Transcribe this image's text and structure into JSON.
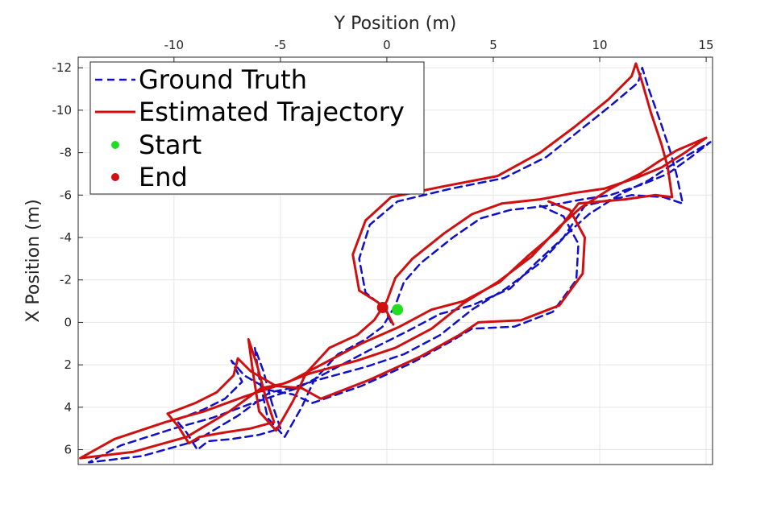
{
  "chart_data": {
    "type": "line",
    "xlabel": "Y Position (m)",
    "ylabel": "X Position (m)",
    "xlim": [
      -14.5,
      15.3
    ],
    "ylim": [
      -12.5,
      6.7
    ],
    "y_reversed": true,
    "x_axis_location": "top",
    "grid": true,
    "legend_placement": "top-left",
    "xticks": [
      -10,
      -5,
      0,
      5,
      10,
      15
    ],
    "yticks": [
      -12,
      -10,
      -8,
      -6,
      -4,
      -2,
      0,
      2,
      4,
      6
    ],
    "series": [
      {
        "name": "Ground Truth",
        "style": "dashed",
        "color": "#1010c8",
        "points": [
          [
            0.2,
            0.0
          ],
          [
            -0.2,
            -0.8
          ],
          [
            -0.5,
            -1.0
          ],
          [
            -1.0,
            -1.4
          ],
          [
            -1.3,
            -3.0
          ],
          [
            -0.8,
            -4.6
          ],
          [
            0.5,
            -5.7
          ],
          [
            3.0,
            -6.3
          ],
          [
            5.5,
            -6.8
          ],
          [
            7.5,
            -7.8
          ],
          [
            9.0,
            -9.0
          ],
          [
            10.5,
            -10.2
          ],
          [
            11.8,
            -11.3
          ],
          [
            12.0,
            -12.0
          ],
          [
            12.3,
            -11.0
          ],
          [
            12.8,
            -9.6
          ],
          [
            13.3,
            -8.1
          ],
          [
            13.6,
            -7.0
          ],
          [
            13.9,
            -5.6
          ],
          [
            13.0,
            -5.9
          ],
          [
            11.5,
            -6.0
          ],
          [
            9.3,
            -5.5
          ],
          [
            8.3,
            -4.0
          ],
          [
            7.0,
            -2.8
          ],
          [
            5.8,
            -1.6
          ],
          [
            4.0,
            -0.8
          ],
          [
            2.5,
            -0.4
          ],
          [
            1.0,
            0.4
          ],
          [
            -0.8,
            1.3
          ],
          [
            -2.5,
            2.2
          ],
          [
            -4.2,
            3.1
          ],
          [
            -6.3,
            3.8
          ],
          [
            -8.2,
            4.5
          ],
          [
            -10.0,
            5.0
          ],
          [
            -12.5,
            5.8
          ],
          [
            -14.0,
            6.6
          ],
          [
            -11.5,
            6.3
          ],
          [
            -9.0,
            5.6
          ],
          [
            -7.0,
            4.4
          ],
          [
            -5.5,
            3.3
          ],
          [
            -4.5,
            3.1
          ],
          [
            -3.2,
            2.7
          ],
          [
            -1.0,
            2.1
          ],
          [
            0.8,
            1.5
          ],
          [
            2.5,
            0.6
          ],
          [
            4.0,
            -0.6
          ],
          [
            5.6,
            -1.6
          ],
          [
            7.2,
            -2.8
          ],
          [
            8.5,
            -4.2
          ],
          [
            9.5,
            -5.1
          ],
          [
            10.9,
            -6.0
          ],
          [
            12.3,
            -6.7
          ],
          [
            13.2,
            -7.3
          ],
          [
            14.0,
            -7.8
          ],
          [
            15.2,
            -8.5
          ],
          [
            14.3,
            -7.8
          ],
          [
            13.2,
            -7.0
          ],
          [
            12.0,
            -6.5
          ],
          [
            10.5,
            -6.0
          ],
          [
            9.2,
            -5.8
          ],
          [
            7.6,
            -5.5
          ],
          [
            5.8,
            -5.3
          ],
          [
            4.4,
            -4.9
          ],
          [
            3.1,
            -4.0
          ],
          [
            1.6,
            -2.8
          ],
          [
            0.8,
            -1.9
          ],
          [
            0.4,
            -0.8
          ],
          [
            -0.2,
            0.2
          ],
          [
            -1.0,
            0.8
          ],
          [
            -2.3,
            1.5
          ],
          [
            -3.4,
            2.7
          ],
          [
            -4.0,
            4.0
          ],
          [
            -4.8,
            5.4
          ],
          [
            -5.6,
            4.5
          ],
          [
            -6.0,
            2.6
          ],
          [
            -6.2,
            1.2
          ],
          [
            -5.8,
            2.3
          ],
          [
            -5.4,
            3.8
          ],
          [
            -5.0,
            5.0
          ],
          [
            -6.0,
            5.3
          ],
          [
            -7.3,
            5.5
          ],
          [
            -8.4,
            5.6
          ],
          [
            -8.9,
            6.0
          ],
          [
            -9.4,
            5.2
          ],
          [
            -9.9,
            4.6
          ],
          [
            -8.6,
            4.1
          ],
          [
            -7.6,
            3.6
          ],
          [
            -6.8,
            2.8
          ],
          [
            -7.3,
            1.8
          ],
          [
            -6.7,
            2.5
          ],
          [
            -5.5,
            3.2
          ],
          [
            -4.4,
            3.4
          ],
          [
            -3.5,
            3.8
          ],
          [
            -1.2,
            3.0
          ],
          [
            1.2,
            1.9
          ],
          [
            3.0,
            0.9
          ],
          [
            4.0,
            0.3
          ],
          [
            6.0,
            0.2
          ],
          [
            7.8,
            -0.5
          ],
          [
            8.9,
            -2.0
          ],
          [
            9.0,
            -3.7
          ],
          [
            8.3,
            -5.0
          ],
          [
            7.2,
            -5.5
          ]
        ]
      },
      {
        "name": "Estimated Trajectory",
        "style": "solid",
        "color": "#d01010",
        "points": [
          [
            0.3,
            0.1
          ],
          [
            -0.1,
            -0.7
          ],
          [
            -0.5,
            -1.0
          ],
          [
            -1.3,
            -1.5
          ],
          [
            -1.6,
            -3.2
          ],
          [
            -1.0,
            -4.8
          ],
          [
            0.2,
            -5.9
          ],
          [
            2.6,
            -6.4
          ],
          [
            5.2,
            -6.9
          ],
          [
            7.2,
            -8.0
          ],
          [
            8.8,
            -9.2
          ],
          [
            10.4,
            -10.5
          ],
          [
            11.5,
            -11.6
          ],
          [
            11.7,
            -12.2
          ],
          [
            12.0,
            -11.3
          ],
          [
            12.4,
            -9.9
          ],
          [
            12.9,
            -8.4
          ],
          [
            13.2,
            -7.3
          ],
          [
            13.4,
            -5.9
          ],
          [
            12.6,
            -6.0
          ],
          [
            11.2,
            -5.8
          ],
          [
            9.0,
            -5.6
          ],
          [
            8.0,
            -4.3
          ],
          [
            6.6,
            -3.1
          ],
          [
            5.3,
            -1.9
          ],
          [
            3.6,
            -1.0
          ],
          [
            2.1,
            -0.6
          ],
          [
            0.6,
            0.2
          ],
          [
            -1.2,
            1.0
          ],
          [
            -2.9,
            1.9
          ],
          [
            -4.6,
            2.8
          ],
          [
            -6.7,
            3.5
          ],
          [
            -8.6,
            4.2
          ],
          [
            -10.4,
            4.7
          ],
          [
            -12.8,
            5.5
          ],
          [
            -14.4,
            6.4
          ],
          [
            -11.9,
            6.1
          ],
          [
            -9.4,
            5.4
          ],
          [
            -7.4,
            4.2
          ],
          [
            -5.9,
            3.1
          ],
          [
            -4.9,
            2.9
          ],
          [
            -3.6,
            2.4
          ],
          [
            -1.4,
            1.8
          ],
          [
            0.4,
            1.2
          ],
          [
            2.1,
            0.3
          ],
          [
            3.6,
            -0.9
          ],
          [
            5.2,
            -1.9
          ],
          [
            6.8,
            -3.1
          ],
          [
            8.1,
            -4.5
          ],
          [
            9.1,
            -5.4
          ],
          [
            10.5,
            -6.3
          ],
          [
            11.9,
            -7.0
          ],
          [
            12.8,
            -7.6
          ],
          [
            13.6,
            -8.1
          ],
          [
            15.0,
            -8.7
          ],
          [
            14.0,
            -8.0
          ],
          [
            12.9,
            -7.3
          ],
          [
            11.7,
            -6.8
          ],
          [
            10.2,
            -6.3
          ],
          [
            8.8,
            -6.1
          ],
          [
            7.2,
            -5.8
          ],
          [
            5.4,
            -5.6
          ],
          [
            4.0,
            -5.1
          ],
          [
            2.7,
            -4.2
          ],
          [
            1.2,
            -3.0
          ],
          [
            0.4,
            -2.1
          ],
          [
            0.0,
            -1.0
          ],
          [
            -0.6,
            -0.1
          ],
          [
            -1.4,
            0.6
          ],
          [
            -2.7,
            1.2
          ],
          [
            -3.8,
            2.4
          ],
          [
            -4.4,
            3.7
          ],
          [
            -5.2,
            5.1
          ],
          [
            -6.0,
            4.2
          ],
          [
            -6.3,
            2.3
          ],
          [
            -6.5,
            0.8
          ],
          [
            -6.1,
            2.0
          ],
          [
            -5.7,
            3.5
          ],
          [
            -5.3,
            4.7
          ],
          [
            -6.4,
            5.0
          ],
          [
            -7.7,
            5.2
          ],
          [
            -8.8,
            5.4
          ],
          [
            -9.3,
            5.7
          ],
          [
            -9.8,
            4.9
          ],
          [
            -10.3,
            4.3
          ],
          [
            -9.0,
            3.8
          ],
          [
            -8.0,
            3.3
          ],
          [
            -7.2,
            2.5
          ],
          [
            -7.0,
            1.7
          ],
          [
            -6.4,
            2.3
          ],
          [
            -5.2,
            3.0
          ],
          [
            -4.0,
            3.1
          ],
          [
            -3.1,
            3.6
          ],
          [
            -0.8,
            2.7
          ],
          [
            1.6,
            1.6
          ],
          [
            3.4,
            0.6
          ],
          [
            4.3,
            0.0
          ],
          [
            6.3,
            -0.1
          ],
          [
            8.1,
            -0.8
          ],
          [
            9.2,
            -2.3
          ],
          [
            9.3,
            -4.0
          ],
          [
            8.6,
            -5.3
          ],
          [
            7.6,
            -5.7
          ]
        ]
      }
    ],
    "markers": [
      {
        "name": "Start",
        "color": "#22dd22",
        "point": [
          0.5,
          -0.6
        ]
      },
      {
        "name": "End",
        "color": "#d01010",
        "point": [
          -0.2,
          -0.7
        ]
      }
    ]
  }
}
